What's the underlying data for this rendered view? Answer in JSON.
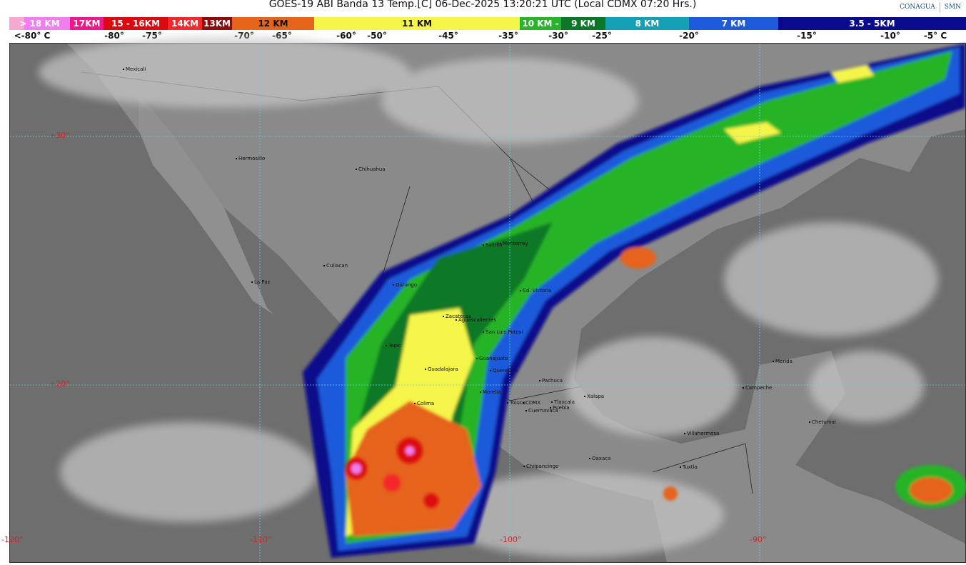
{
  "title": "GOES-19 ABI Banda 13 Temp.[C] 06-Dec-2025 13:20:21 UTC (Local CDMX  07:20 Hrs.)",
  "logos": {
    "conagua": "CONAGUA",
    "smn": "SMN"
  },
  "legend": [
    {
      "label": "> 18 KM",
      "color": "#f07ef0"
    },
    {
      "label": "17KM",
      "color": "#f0168c"
    },
    {
      "label": "15 - 16KM",
      "color": "#dc0a10"
    },
    {
      "label": "14KM",
      "color": "#f4282c"
    },
    {
      "label": "13KM",
      "color": "#8c0a0a"
    },
    {
      "label": "12 KM",
      "color": "#e6641a"
    },
    {
      "label": "11 KM",
      "color": "#f5f54a"
    },
    {
      "label": "10 KM -",
      "color": "#28b428"
    },
    {
      "label": "9 KM",
      "color": "#0a7828"
    },
    {
      "label": "8 KM",
      "color": "#14a0b4"
    },
    {
      "label": "7 KM",
      "color": "#1e5adc"
    },
    {
      "label": "3.5 - 5KM",
      "color": "#0a0a8c"
    }
  ],
  "temps": [
    "<-80° C",
    "-80°",
    "-75°",
    "-70°",
    "-65°",
    "-60°",
    "-50°",
    "-45°",
    "-35°",
    "-30°",
    "-25°",
    "-20°",
    "-15°",
    "-10°",
    "-5°  C"
  ],
  "grid": {
    "lat": [
      "+30°",
      "+20°"
    ],
    "lon": [
      "-120°",
      "-110°",
      "-100°",
      "-90°"
    ]
  },
  "cities": [
    "Mexicali",
    "Hermosillo",
    "Chihuahua",
    "Culiacan",
    "La Paz",
    "Durango",
    "Saltillo",
    "Monterrey",
    "Cd. Victoria",
    "Zacatecas",
    "San Luis Potosi",
    "Aguascalientes",
    "Tepic",
    "Guanajuato",
    "Guadalajara",
    "Queretaro",
    "Pachuca",
    "Morelia",
    "Colima",
    "Toluca",
    "CDMX",
    "Tlaxcala",
    "Xalapa",
    "Puebla",
    "Cuernavaca",
    "Chilpancingo",
    "Oaxaca",
    "Villahermosa",
    "Tuxtla",
    "Campeche",
    "Merida",
    "Chetumal"
  ]
}
